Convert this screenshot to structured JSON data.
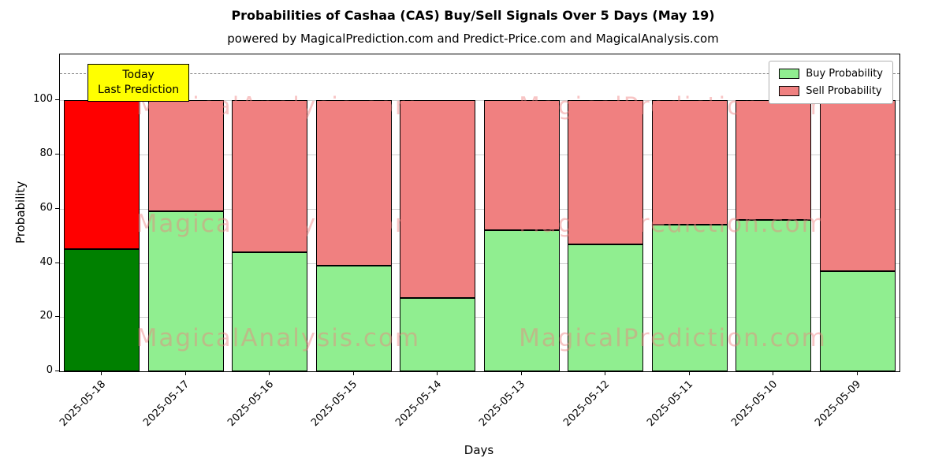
{
  "chart_data": {
    "type": "bar",
    "stacked": true,
    "title": "Probabilities of Cashaa (CAS) Buy/Sell Signals Over 5 Days (May 19)",
    "subtitle": "powered by MagicalPrediction.com and Predict-Price.com and MagicalAnalysis.com",
    "xlabel": "Days",
    "ylabel": "Probability",
    "ylim": [
      0,
      117
    ],
    "yticks": [
      0,
      20,
      40,
      60,
      80,
      100
    ],
    "dashed_line_y": 110,
    "grid": true,
    "legend_position": "upper right",
    "categories": [
      "2025-05-18",
      "2025-05-17",
      "2025-05-16",
      "2025-05-15",
      "2025-05-14",
      "2025-05-13",
      "2025-05-12",
      "2025-05-11",
      "2025-05-10",
      "2025-05-09"
    ],
    "today_index": 0,
    "series": [
      {
        "name": "Buy Probability",
        "values": [
          45,
          59,
          44,
          39,
          27,
          52,
          47,
          54,
          56,
          37
        ],
        "color": "#90EE90",
        "today_color": "#008000"
      },
      {
        "name": "Sell Probability",
        "values": [
          55,
          41,
          56,
          61,
          73,
          48,
          53,
          46,
          44,
          63
        ],
        "color": "#F08080",
        "today_color": "#FF0000"
      }
    ]
  },
  "annotation": {
    "line1": "Today",
    "line2": "Last Prediction",
    "bg_color": "#FFFF00"
  },
  "watermarks": {
    "left_text": "MagicalAnalysis.com",
    "right_text": "MagicalPrediction.com",
    "color": "#F08080"
  }
}
